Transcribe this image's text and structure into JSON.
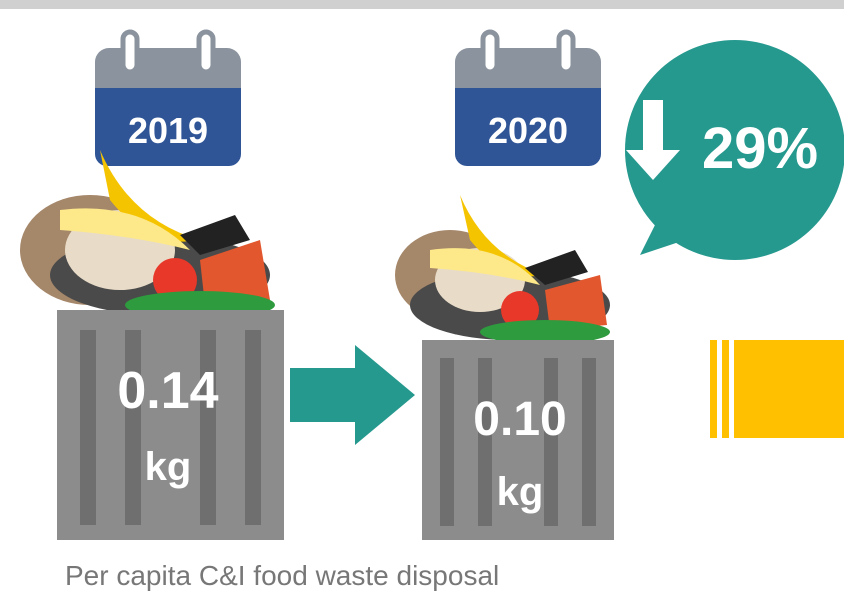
{
  "items": [
    {
      "year": "2019",
      "value": "0.14",
      "unit": "kg"
    },
    {
      "year": "2020",
      "value": "0.10",
      "unit": "kg"
    }
  ],
  "change": "29%",
  "caption": "Per capita C&I food waste disposal"
}
